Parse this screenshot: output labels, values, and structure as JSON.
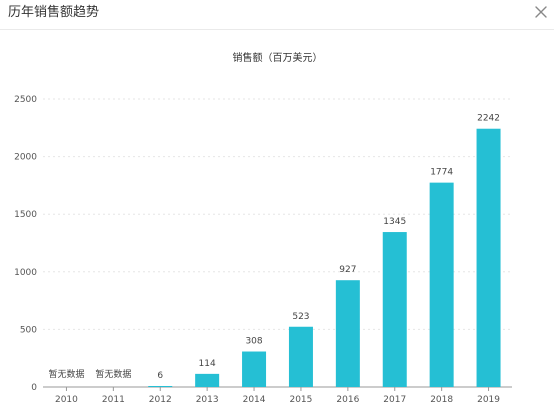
{
  "dialog": {
    "title": "历年销售额趋势",
    "close_icon": "close-icon"
  },
  "chart_data": {
    "type": "bar",
    "title": "销售额（百万美元）",
    "categories": [
      "2010",
      "2011",
      "2012",
      "2013",
      "2014",
      "2015",
      "2016",
      "2017",
      "2018",
      "2019"
    ],
    "values": [
      null,
      null,
      6,
      114,
      308,
      523,
      927,
      1345,
      1774,
      2242
    ],
    "data_labels": [
      "暂无数据",
      "暂无数据",
      "6",
      "114",
      "308",
      "523",
      "927",
      "1345",
      "1774",
      "2242"
    ],
    "y_ticks": [
      "0",
      "500",
      "1000",
      "1500",
      "2000",
      "2500"
    ],
    "ylim": [
      0,
      2500
    ],
    "grid": true,
    "bar_color": "#25bfd4"
  }
}
